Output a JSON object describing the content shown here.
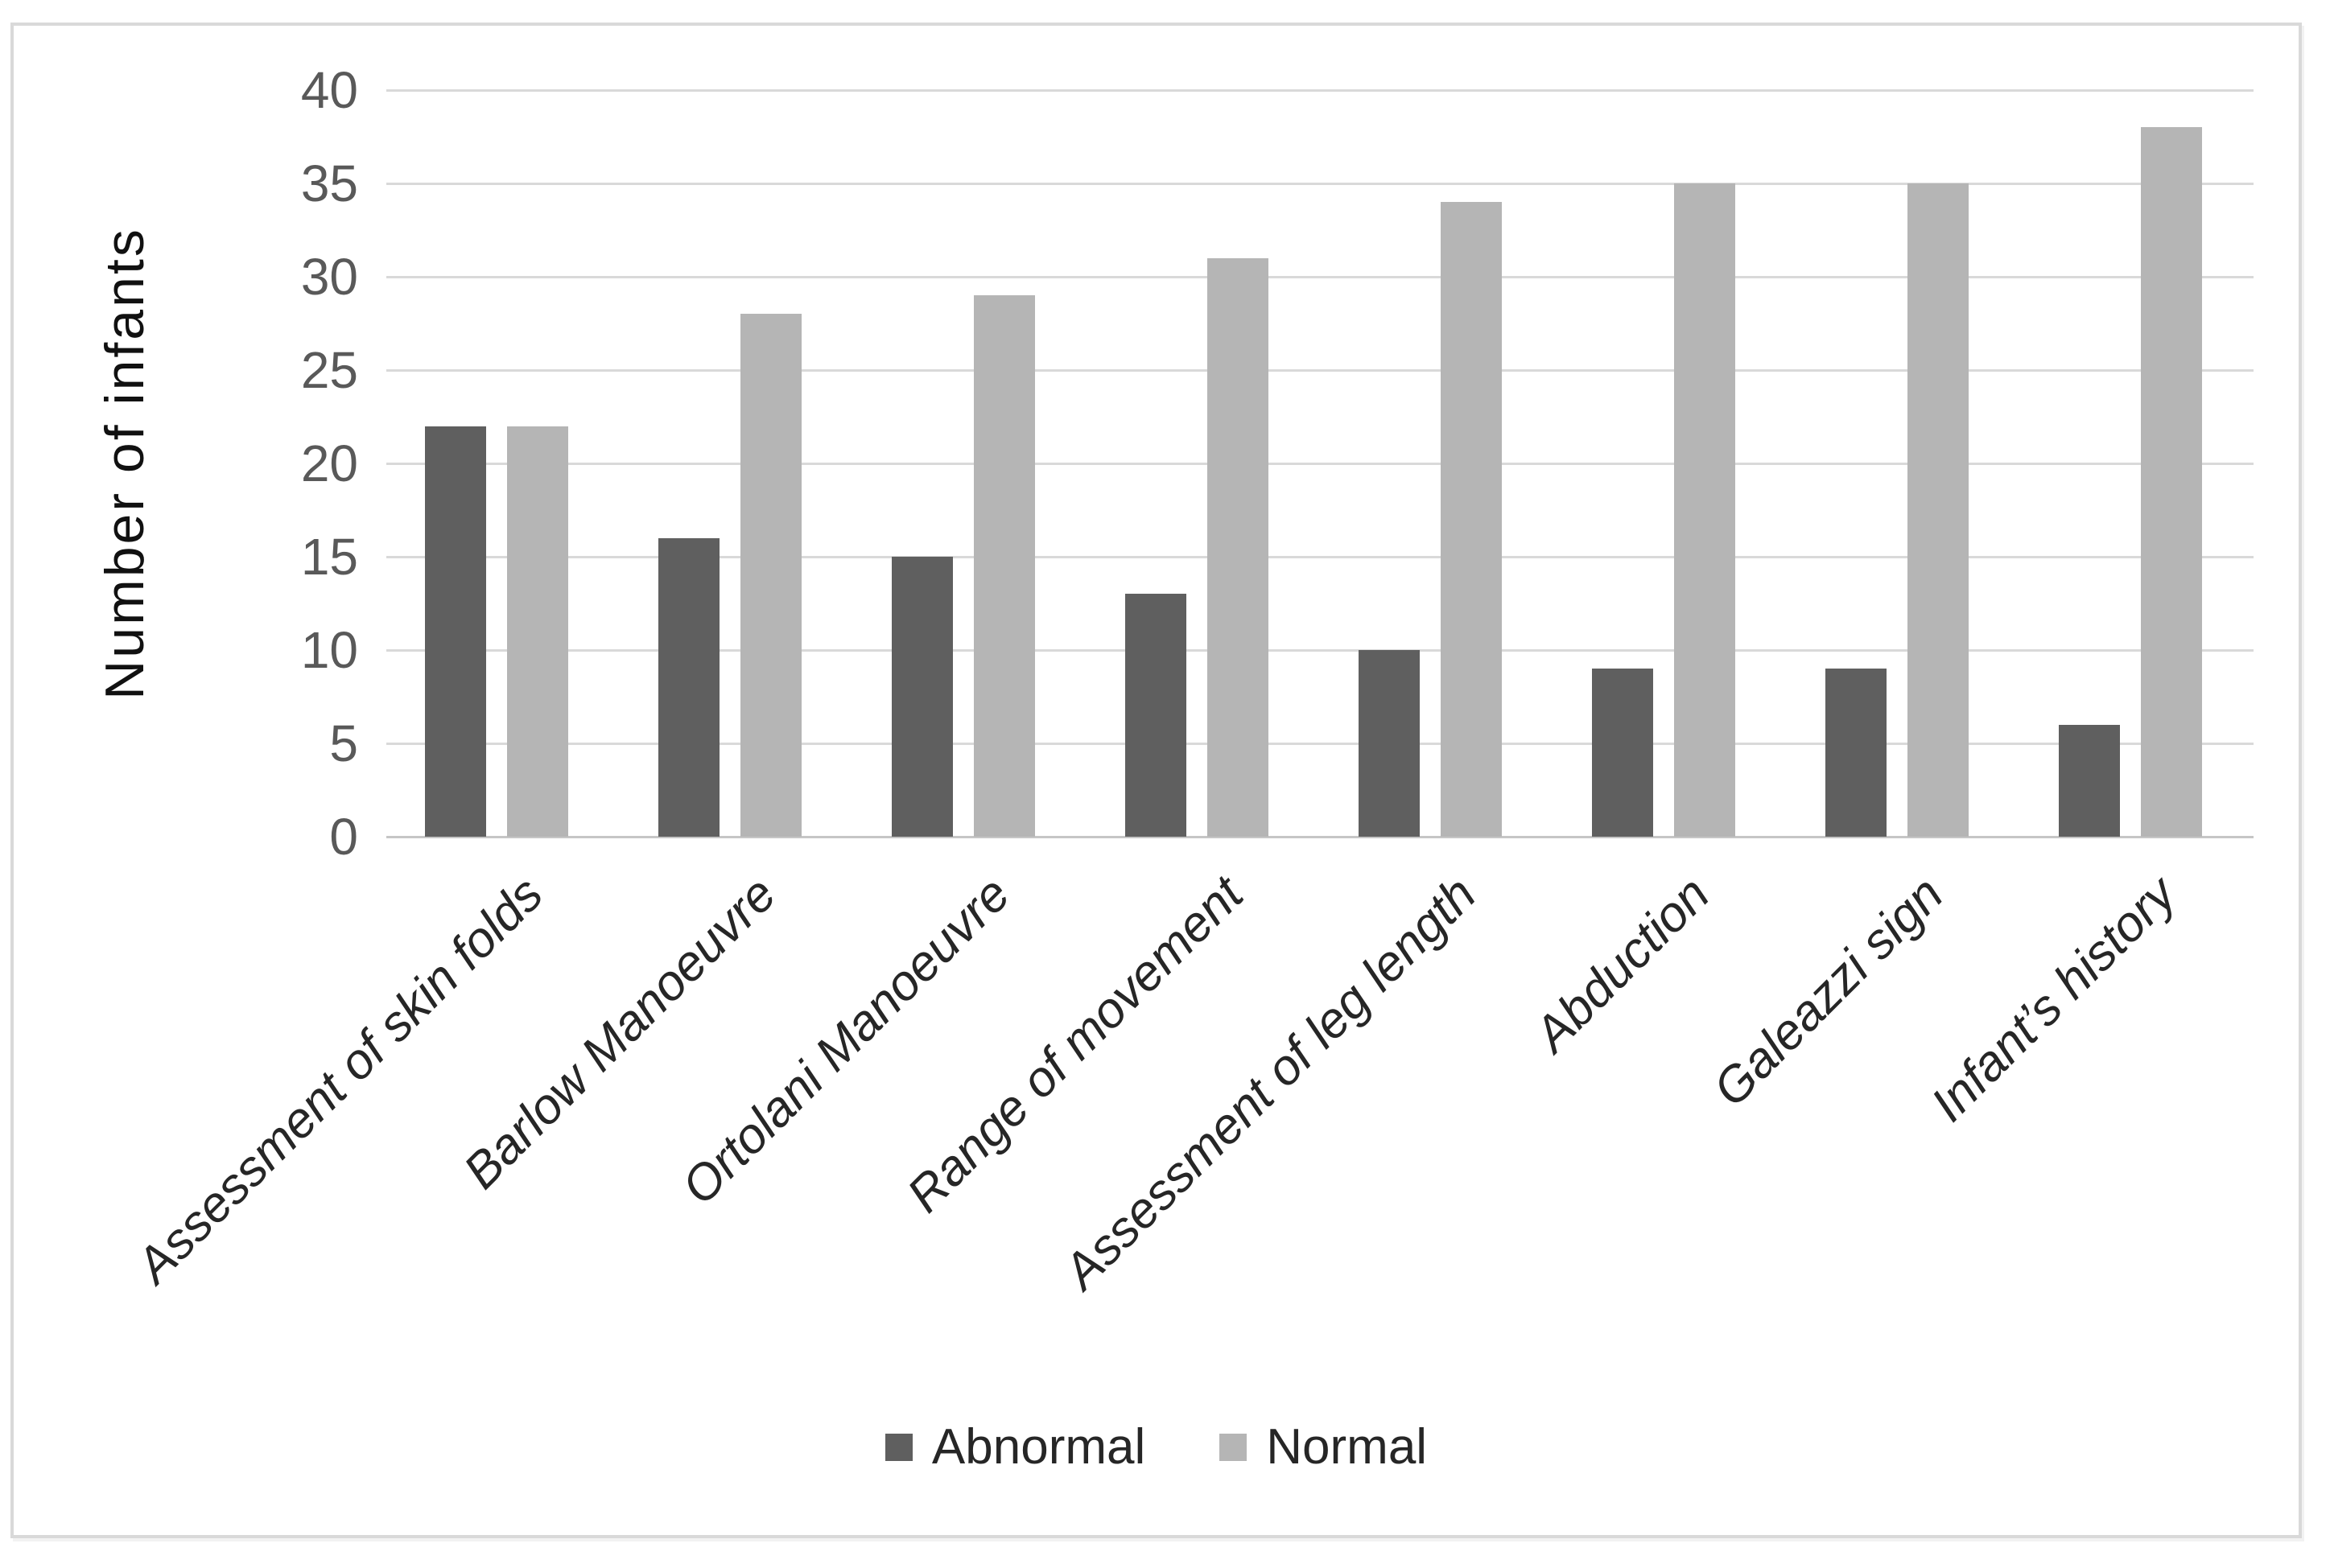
{
  "chart_data": {
    "type": "bar",
    "title": "",
    "xlabel": "",
    "ylabel": "Number of infants",
    "categories": [
      "Assessment of skin folds",
      "Barlow Manoeuvre",
      "Ortolani Manoeuvre",
      "Range of movement",
      "Assessment of leg length",
      "Abduction",
      "Galeazzi sign",
      "Infant’s history"
    ],
    "series": [
      {
        "name": "Abnormal",
        "color": "#5f5f5f",
        "values": [
          22,
          16,
          15,
          13,
          10,
          9,
          9,
          6
        ]
      },
      {
        "name": "Normal",
        "color": "#b5b5b5",
        "values": [
          22,
          28,
          29,
          31,
          34,
          35,
          35,
          38
        ]
      }
    ],
    "ylim": [
      0,
      40
    ],
    "ytick_step": 5,
    "ytick_labels": [
      "0",
      "5",
      "10",
      "15",
      "20",
      "25",
      "30",
      "35",
      "40"
    ],
    "grid": "horizontal",
    "legend_position": "bottom",
    "x_labels_rotation_deg": 45
  },
  "colors": {
    "background": "#ffffff",
    "frame_border": "#d9d9d9",
    "gridline": "#d9d9d9",
    "axis_baseline": "#c6c6c6",
    "tick_text": "#595959",
    "category_text": "#262626",
    "legend_text": "#262626",
    "axis_title_text": "#111111"
  }
}
